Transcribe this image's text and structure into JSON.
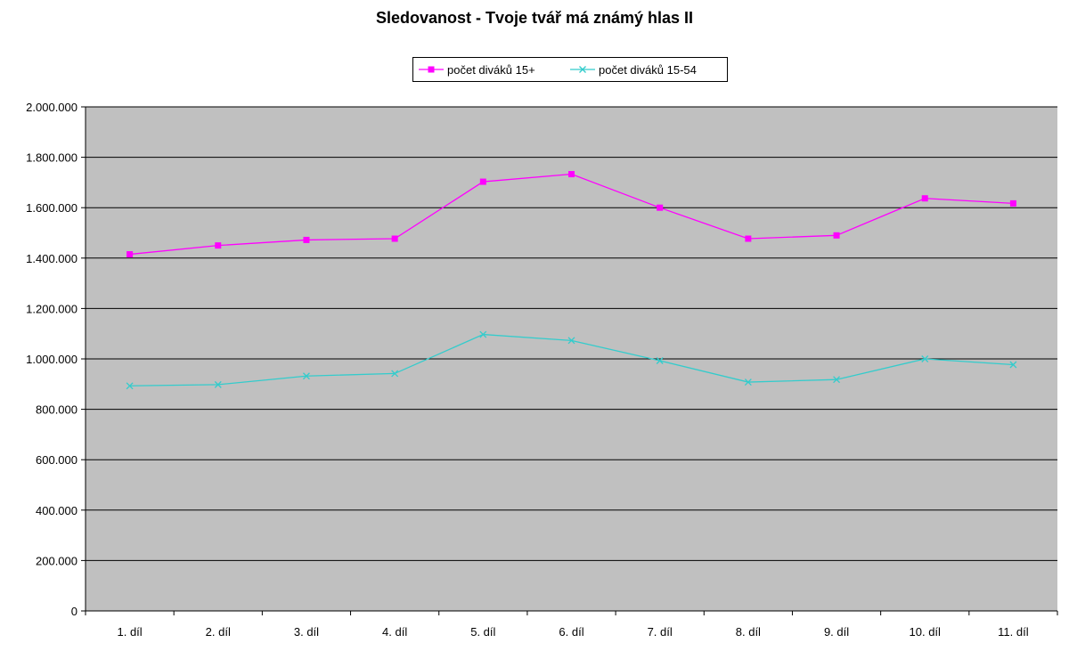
{
  "chart_data": {
    "type": "line",
    "title": "Sledovanost - Tvoje tvář má známý hlas II",
    "categories": [
      "1. díl",
      "2. díl",
      "3. díl",
      "4. díl",
      "5. díl",
      "6. díl",
      "7. díl",
      "8. díl",
      "9. díl",
      "10. díl",
      "11. díl"
    ],
    "series": [
      {
        "name": "počet diváků 15+",
        "color": "#ff00ff",
        "marker": "square",
        "values": [
          1415000,
          1450000,
          1472000,
          1477000,
          1703000,
          1733000,
          1600000,
          1477000,
          1490000,
          1637000,
          1617000
        ]
      },
      {
        "name": "počet diváků 15-54",
        "color": "#33cccc",
        "marker": "x",
        "values": [
          893000,
          898000,
          932000,
          942000,
          1097000,
          1073000,
          993000,
          908000,
          918000,
          1000000,
          977000
        ]
      }
    ],
    "ylim": [
      0,
      2000000
    ],
    "yticks": [
      0,
      200000,
      400000,
      600000,
      800000,
      1000000,
      1200000,
      1400000,
      1600000,
      1800000,
      2000000
    ],
    "ytick_labels": [
      "0",
      "200.000",
      "400.000",
      "600.000",
      "800.000",
      "1.000.000",
      "1.200.000",
      "1.400.000",
      "1.600.000",
      "1.800.000",
      "2.000.000"
    ],
    "grid": true,
    "legend_position": "top",
    "plot_background": "#c0c0c0"
  }
}
